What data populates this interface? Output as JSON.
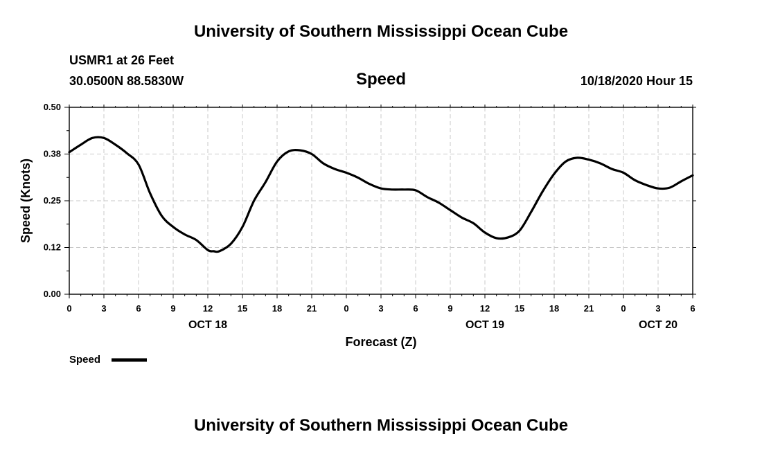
{
  "header": {
    "title": "University of Southern Mississippi Ocean Cube",
    "station": "USMR1 at 26 Feet",
    "coordinates": "30.0500N 88.5830W",
    "variable": "Speed",
    "timestamp": "10/18/2020 Hour 15"
  },
  "footer": {
    "title": "University of Southern Mississippi Ocean Cube"
  },
  "chart_data": {
    "type": "line",
    "title": "Speed",
    "xlabel": "Forecast (Z)",
    "ylabel": "Speed (Knots)",
    "ylim": [
      0,
      0.5
    ],
    "yticks": [
      "0.00",
      "0.12",
      "0.25",
      "0.38",
      "0.50"
    ],
    "xlim": [
      0,
      54
    ],
    "xtick_labels": [
      "0",
      "3",
      "6",
      "9",
      "12",
      "15",
      "18",
      "21",
      "0",
      "3",
      "6",
      "9",
      "12",
      "15",
      "18",
      "21",
      "0",
      "3",
      "6"
    ],
    "date_labels": [
      {
        "text": "OCT 18",
        "at_hour": 12
      },
      {
        "text": "OCT 19",
        "at_hour": 36
      },
      {
        "text": "OCT 20",
        "at_hour": 51
      }
    ],
    "grid": true,
    "legend": {
      "position": "bottom-left",
      "entries": [
        "Speed"
      ]
    },
    "series": [
      {
        "name": "Speed",
        "color": "#000000",
        "x": [
          0,
          1,
          2,
          3,
          4,
          5,
          6,
          7,
          8,
          9,
          10,
          11,
          12,
          12.5,
          13,
          14,
          15,
          16,
          17,
          18,
          19,
          20,
          21,
          22,
          23,
          24,
          25,
          26,
          27,
          28,
          29,
          30,
          31,
          32,
          33,
          34,
          35,
          36,
          37,
          38,
          39,
          40,
          41,
          42,
          43,
          44,
          45,
          46,
          47,
          48,
          49,
          50,
          51,
          52,
          53,
          54
        ],
        "y": [
          0.38,
          0.4,
          0.418,
          0.418,
          0.4,
          0.377,
          0.347,
          0.27,
          0.21,
          0.18,
          0.16,
          0.145,
          0.118,
          0.115,
          0.115,
          0.135,
          0.18,
          0.25,
          0.3,
          0.355,
          0.382,
          0.385,
          0.375,
          0.35,
          0.335,
          0.325,
          0.312,
          0.295,
          0.283,
          0.28,
          0.28,
          0.278,
          0.26,
          0.245,
          0.225,
          0.205,
          0.19,
          0.165,
          0.15,
          0.152,
          0.17,
          0.22,
          0.275,
          0.322,
          0.355,
          0.365,
          0.36,
          0.35,
          0.335,
          0.325,
          0.305,
          0.292,
          0.283,
          0.285,
          0.302,
          0.318
        ]
      }
    ]
  }
}
